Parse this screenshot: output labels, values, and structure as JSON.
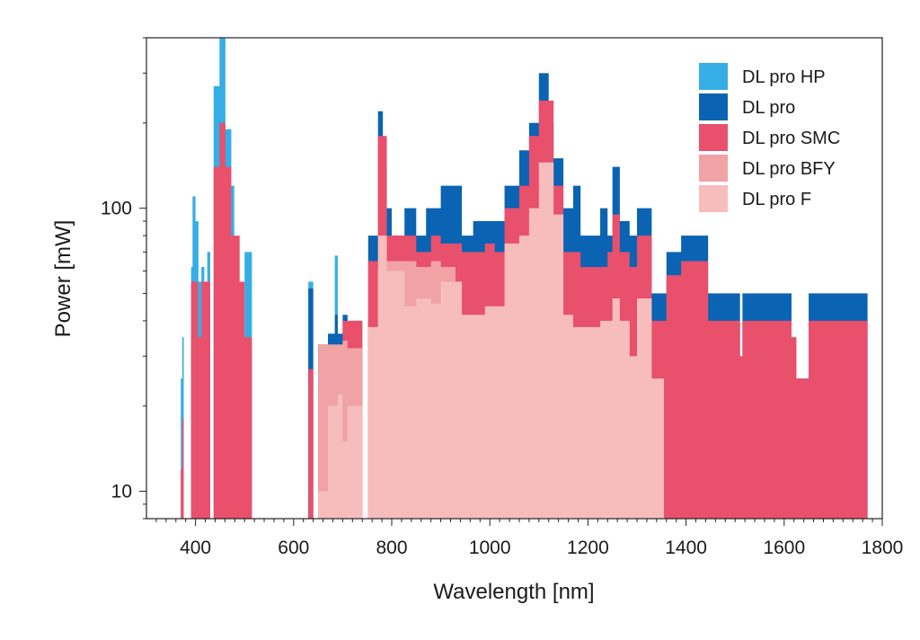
{
  "chart_data": {
    "type": "area",
    "title": "",
    "xlabel": "Wavelength [nm]",
    "ylabel": "Power [mW]",
    "xlim": [
      300,
      1800
    ],
    "ylim": [
      8,
      400
    ],
    "yscale": "log",
    "grid": false,
    "legend_position": "top-right",
    "x_ticks": [
      400,
      600,
      800,
      1000,
      1200,
      1400,
      1600,
      1800
    ],
    "x_tick_labels": [
      "400",
      "600",
      "800",
      "1000",
      "1200",
      "1400",
      "1600",
      "1800"
    ],
    "y_ticks": [
      10,
      100
    ],
    "y_tick_labels": [
      "10",
      "100"
    ],
    "series": [
      {
        "name": "DL pro HP",
        "color": "#35aee6",
        "points": [
          [
            370,
            25
          ],
          [
            373,
            35
          ],
          [
            376,
            0
          ],
          [
            391,
            62
          ],
          [
            394,
            110
          ],
          [
            400,
            90
          ],
          [
            406,
            55
          ],
          [
            412,
            62
          ],
          [
            418,
            48
          ],
          [
            424,
            70
          ],
          [
            430,
            0
          ],
          [
            437,
            270
          ],
          [
            449,
            400
          ],
          [
            461,
            190
          ],
          [
            473,
            120
          ],
          [
            479,
            70
          ],
          [
            485,
            0
          ],
          [
            500,
            70
          ],
          [
            515,
            0
          ],
          [
            630,
            55
          ],
          [
            640,
            0
          ],
          [
            684,
            68
          ],
          [
            690,
            0
          ]
        ]
      },
      {
        "name": "DL pro",
        "color": "#0a63b3",
        "points": [
          [
            630,
            52
          ],
          [
            640,
            0
          ],
          [
            650,
            33
          ],
          [
            670,
            36
          ],
          [
            684,
            42
          ],
          [
            690,
            36
          ],
          [
            700,
            42
          ],
          [
            710,
            33
          ],
          [
            718,
            40
          ],
          [
            740,
            0
          ],
          [
            752,
            80
          ],
          [
            772,
            220
          ],
          [
            782,
            140
          ],
          [
            790,
            100
          ],
          [
            800,
            80
          ],
          [
            826,
            100
          ],
          [
            850,
            80
          ],
          [
            870,
            100
          ],
          [
            900,
            120
          ],
          [
            943,
            80
          ],
          [
            966,
            90
          ],
          [
            1000,
            90
          ],
          [
            1030,
            120
          ],
          [
            1060,
            160
          ],
          [
            1080,
            200
          ],
          [
            1100,
            300
          ],
          [
            1120,
            200
          ],
          [
            1130,
            150
          ],
          [
            1150,
            100
          ],
          [
            1170,
            120
          ],
          [
            1185,
            80
          ],
          [
            1225,
            100
          ],
          [
            1240,
            80
          ],
          [
            1250,
            140
          ],
          [
            1265,
            90
          ],
          [
            1285,
            80
          ],
          [
            1300,
            100
          ],
          [
            1330,
            50
          ],
          [
            1360,
            70
          ],
          [
            1390,
            80
          ],
          [
            1445,
            50
          ],
          [
            1510,
            25
          ],
          [
            1515,
            50
          ],
          [
            1615,
            20
          ],
          [
            1625,
            25
          ],
          [
            1650,
            50
          ],
          [
            1770,
            0
          ]
        ]
      },
      {
        "name": "DL pro SMC",
        "color": "#e8506c",
        "points": [
          [
            370,
            12
          ],
          [
            373,
            18
          ],
          [
            376,
            0
          ],
          [
            391,
            55
          ],
          [
            405,
            35
          ],
          [
            412,
            55
          ],
          [
            430,
            0
          ],
          [
            437,
            140
          ],
          [
            449,
            200
          ],
          [
            461,
            140
          ],
          [
            473,
            80
          ],
          [
            490,
            55
          ],
          [
            500,
            0
          ],
          [
            500,
            35
          ],
          [
            515,
            0
          ],
          [
            630,
            27
          ],
          [
            640,
            0
          ],
          [
            650,
            22
          ],
          [
            680,
            30
          ],
          [
            700,
            40
          ],
          [
            740,
            0
          ],
          [
            752,
            65
          ],
          [
            772,
            180
          ],
          [
            790,
            80
          ],
          [
            826,
            80
          ],
          [
            850,
            70
          ],
          [
            880,
            80
          ],
          [
            900,
            75
          ],
          [
            943,
            70
          ],
          [
            966,
            70
          ],
          [
            990,
            75
          ],
          [
            1010,
            70
          ],
          [
            1030,
            100
          ],
          [
            1060,
            120
          ],
          [
            1080,
            180
          ],
          [
            1100,
            240
          ],
          [
            1130,
            120
          ],
          [
            1150,
            70
          ],
          [
            1170,
            70
          ],
          [
            1185,
            62
          ],
          [
            1225,
            62
          ],
          [
            1240,
            70
          ],
          [
            1250,
            95
          ],
          [
            1265,
            70
          ],
          [
            1285,
            62
          ],
          [
            1300,
            80
          ],
          [
            1330,
            40
          ],
          [
            1360,
            58
          ],
          [
            1390,
            65
          ],
          [
            1445,
            40
          ],
          [
            1510,
            30
          ],
          [
            1515,
            40
          ],
          [
            1615,
            35
          ],
          [
            1625,
            25
          ],
          [
            1650,
            40
          ],
          [
            1770,
            0
          ]
        ]
      },
      {
        "name": "DL pro BFY",
        "color": "#f0a2a4",
        "points": [
          [
            650,
            33
          ],
          [
            670,
            33
          ],
          [
            690,
            33
          ],
          [
            700,
            34
          ],
          [
            710,
            32
          ],
          [
            740,
            0
          ],
          [
            772,
            62
          ],
          [
            790,
            65
          ],
          [
            826,
            65
          ],
          [
            850,
            62
          ],
          [
            880,
            65
          ],
          [
            900,
            62
          ],
          [
            930,
            55
          ],
          [
            943,
            0
          ]
        ]
      },
      {
        "name": "DL pro F",
        "color": "#f7bdbd",
        "points": [
          [
            650,
            10
          ],
          [
            670,
            20
          ],
          [
            690,
            22
          ],
          [
            700,
            15
          ],
          [
            710,
            20
          ],
          [
            740,
            0
          ],
          [
            752,
            38
          ],
          [
            772,
            80
          ],
          [
            790,
            60
          ],
          [
            826,
            45
          ],
          [
            850,
            48
          ],
          [
            880,
            46
          ],
          [
            900,
            55
          ],
          [
            943,
            42
          ],
          [
            966,
            42
          ],
          [
            990,
            45
          ],
          [
            1030,
            75
          ],
          [
            1060,
            80
          ],
          [
            1080,
            100
          ],
          [
            1100,
            145
          ],
          [
            1130,
            95
          ],
          [
            1150,
            42
          ],
          [
            1170,
            38
          ],
          [
            1185,
            38
          ],
          [
            1225,
            40
          ],
          [
            1250,
            48
          ],
          [
            1265,
            40
          ],
          [
            1285,
            30
          ],
          [
            1300,
            48
          ],
          [
            1330,
            25
          ],
          [
            1355,
            0
          ]
        ]
      }
    ]
  }
}
